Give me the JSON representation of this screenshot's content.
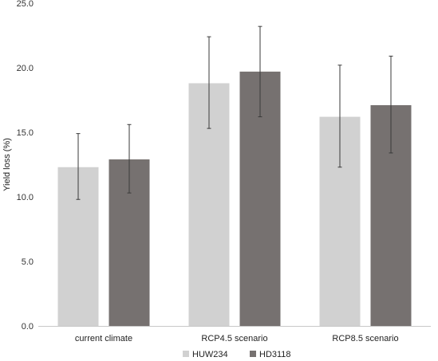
{
  "chart_data": {
    "type": "bar",
    "title": "",
    "xlabel": "",
    "ylabel": "Yield loss (%)",
    "ylim": [
      0,
      25
    ],
    "yticks": [
      "0.0",
      "5.0",
      "10.0",
      "15.0",
      "20.0",
      "25.0"
    ],
    "grid": false,
    "legend_position": "bottom",
    "categories": [
      "current climate",
      "RCP4.5 scenario",
      "RCP8.5 scenario"
    ],
    "series": [
      {
        "name": "HUW234",
        "color": "#d1d1d1",
        "values": [
          12.3,
          18.8,
          16.2
        ],
        "error_low": [
          9.8,
          15.3,
          12.3
        ],
        "error_high": [
          14.9,
          22.4,
          20.2
        ]
      },
      {
        "name": "HD3118",
        "color": "#767170",
        "values": [
          12.9,
          19.7,
          17.1
        ],
        "error_low": [
          10.3,
          16.2,
          13.4
        ],
        "error_high": [
          15.6,
          23.2,
          20.9
        ]
      }
    ]
  }
}
